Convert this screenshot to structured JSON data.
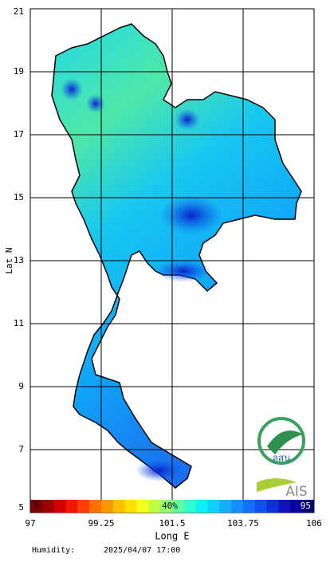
{
  "map": {
    "y_axis": {
      "label": "Lat N",
      "ticks": [
        21,
        19,
        17,
        15,
        13,
        11,
        9,
        7,
        5
      ]
    },
    "x_axis": {
      "label": "Long E",
      "ticks": [
        97,
        99.25,
        101.5,
        103.75,
        106
      ]
    },
    "colorbar": {
      "min_label": "5",
      "mid_label": "40%",
      "max_label": "95"
    },
    "footer": {
      "variable": "Humidity:",
      "timestamp": "2025/04/07 17:00"
    },
    "logos": [
      "ลสน",
      "AIS"
    ]
  }
}
